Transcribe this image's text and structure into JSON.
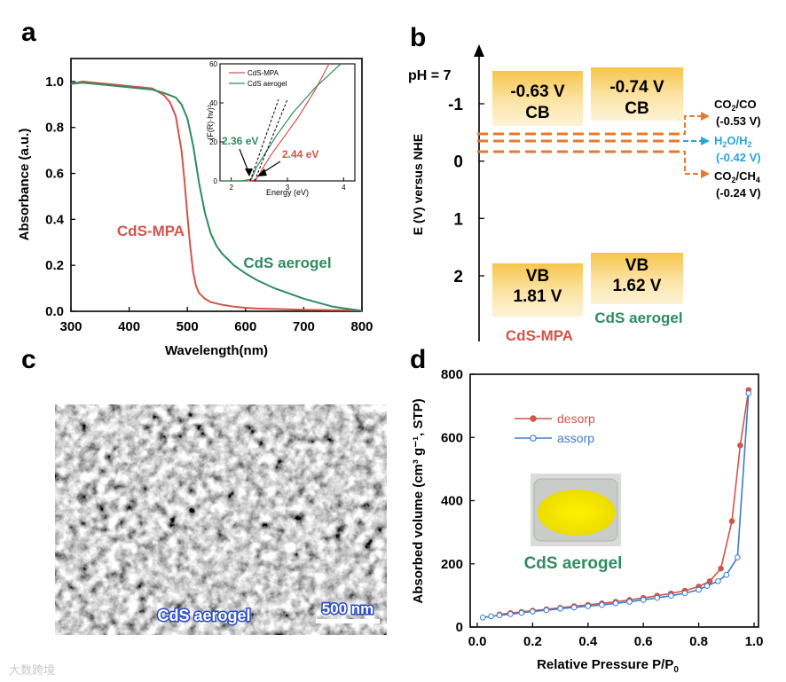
{
  "colors": {
    "red": "#d2544a",
    "green": "#2e8b62",
    "blue": "#3a7bd5",
    "orange": "#e8782a",
    "cyan": "#22a7e0",
    "box": "#f8d068"
  },
  "panels": {
    "a": "a",
    "b": "b",
    "c": "c",
    "d": "d"
  },
  "chart_data": [
    {
      "type": "line",
      "id": "a",
      "xlabel": "Wavelength(nm)",
      "ylabel": "Absorbance (a.u.)",
      "xlim": [
        300,
        800
      ],
      "ylim": [
        0,
        1.1
      ],
      "xticks": [
        "300",
        "400",
        "500",
        "600",
        "700",
        "800"
      ],
      "yticks": [
        "0.0",
        "0.2",
        "0.4",
        "0.6",
        "0.8",
        "1.0"
      ],
      "series": [
        {
          "name": "CdS-MPA",
          "x": [
            300,
            320,
            340,
            360,
            380,
            400,
            420,
            440,
            460,
            470,
            480,
            490,
            495,
            500,
            505,
            510,
            515,
            520,
            530,
            540,
            560,
            580,
            600,
            620,
            650,
            700,
            750,
            800
          ],
          "y": [
            0.99,
            1.0,
            0.995,
            0.99,
            0.985,
            0.98,
            0.975,
            0.97,
            0.94,
            0.91,
            0.85,
            0.7,
            0.57,
            0.42,
            0.28,
            0.17,
            0.11,
            0.08,
            0.055,
            0.04,
            0.028,
            0.02,
            0.015,
            0.012,
            0.01,
            0.007,
            0.005,
            0.004
          ]
        },
        {
          "name": "CdS aerogel",
          "x": [
            300,
            320,
            340,
            360,
            380,
            400,
            420,
            440,
            460,
            480,
            490,
            500,
            510,
            520,
            530,
            540,
            550,
            560,
            580,
            600,
            620,
            650,
            700,
            750,
            800
          ],
          "y": [
            0.99,
            0.995,
            0.99,
            0.985,
            0.98,
            0.975,
            0.97,
            0.965,
            0.95,
            0.93,
            0.9,
            0.84,
            0.72,
            0.56,
            0.43,
            0.34,
            0.285,
            0.25,
            0.2,
            0.165,
            0.135,
            0.1,
            0.055,
            0.02,
            0.002
          ]
        }
      ],
      "annotations": {
        "mpa": "CdS-MPA",
        "aerogel": "CdS aerogel"
      },
      "inset": {
        "xlabel": "Energy (eV)",
        "ylabel": "(F(R)·hv)²",
        "xlim": [
          1.8,
          4.2
        ],
        "ylim": [
          0,
          60
        ],
        "xticks": [
          "2",
          "3",
          "4"
        ],
        "yticks": [
          "0",
          "20",
          "40",
          "60"
        ],
        "legend": [
          "CdS-MPA",
          "CdS aerogel"
        ],
        "series": [
          {
            "name": "CdS-MPA",
            "x": [
              1.8,
              2.3,
              2.44,
              2.55,
              2.7,
              2.9,
              3.2,
              3.5,
              3.74
            ],
            "y": [
              0,
              0,
              0.5,
              6,
              13,
              21,
              33,
              47,
              60
            ]
          },
          {
            "name": "CdS aerogel",
            "x": [
              1.8,
              2.2,
              2.36,
              2.45,
              2.6,
              2.8,
              3.1,
              3.5,
              3.95
            ],
            "y": [
              0,
              0,
              1,
              7,
              14,
              23,
              35,
              48,
              60
            ]
          }
        ],
        "labels": {
          "green_gap": "2.36 eV",
          "red_gap": "2.44 eV"
        }
      }
    },
    {
      "type": "diagram",
      "id": "b",
      "ylabel": "E (V) versus NHE",
      "ph": "pH = 7",
      "ylim": [
        -2.0,
        3.2
      ],
      "yticks": [
        "-1",
        "0",
        "1",
        "2"
      ],
      "bands": [
        {
          "name": "CdS-MPA",
          "cb_value": "-0.63 V",
          "cb": "CB",
          "vb": "VB",
          "vb_value": "1.81 V"
        },
        {
          "name": "CdS aerogel",
          "cb_value": "-0.74 V",
          "cb": "CB",
          "vb": "VB",
          "vb_value": "1.62 V"
        }
      ],
      "potentials": [
        {
          "name": "CO2/CO",
          "value": "(-0.53 V)"
        },
        {
          "name": "H2O/H2",
          "value": "(-0.42 V)"
        },
        {
          "name": "CO2/CH4",
          "value": "(-0.24 V)"
        }
      ]
    },
    {
      "type": "line",
      "id": "d",
      "xlabel": "Relative Pressure P/P0",
      "ylabel": "Absorbed volume (cm³ g⁻¹, STP)",
      "xlim": [
        0,
        1.0
      ],
      "ylim": [
        0,
        800
      ],
      "xticks": [
        "0.0",
        "0.2",
        "0.4",
        "0.6",
        "0.8",
        "1.0"
      ],
      "yticks": [
        "0",
        "200",
        "400",
        "600",
        "800"
      ],
      "series": [
        {
          "name": "desorp",
          "x": [
            0.08,
            0.12,
            0.16,
            0.2,
            0.25,
            0.3,
            0.35,
            0.4,
            0.45,
            0.5,
            0.55,
            0.6,
            0.65,
            0.7,
            0.75,
            0.8,
            0.84,
            0.88,
            0.92,
            0.95,
            0.98
          ],
          "y": [
            40,
            44,
            48,
            52,
            56,
            61,
            66,
            70,
            75,
            80,
            86,
            92,
            99,
            106,
            115,
            128,
            145,
            185,
            335,
            575,
            750
          ]
        },
        {
          "name": "assorp",
          "x": [
            0.02,
            0.05,
            0.08,
            0.12,
            0.16,
            0.2,
            0.25,
            0.3,
            0.35,
            0.4,
            0.45,
            0.5,
            0.55,
            0.6,
            0.65,
            0.7,
            0.75,
            0.8,
            0.83,
            0.87,
            0.9,
            0.94,
            0.98
          ],
          "y": [
            30,
            34,
            37,
            41,
            45,
            49,
            53,
            58,
            62,
            66,
            70,
            75,
            80,
            86,
            92,
            99,
            107,
            118,
            130,
            145,
            165,
            220,
            740
          ]
        }
      ],
      "label": "CdS aerogel"
    }
  ],
  "sem": {
    "label": "CdS aerogel",
    "scale": "500 nm"
  },
  "watermark": "大数跨境"
}
